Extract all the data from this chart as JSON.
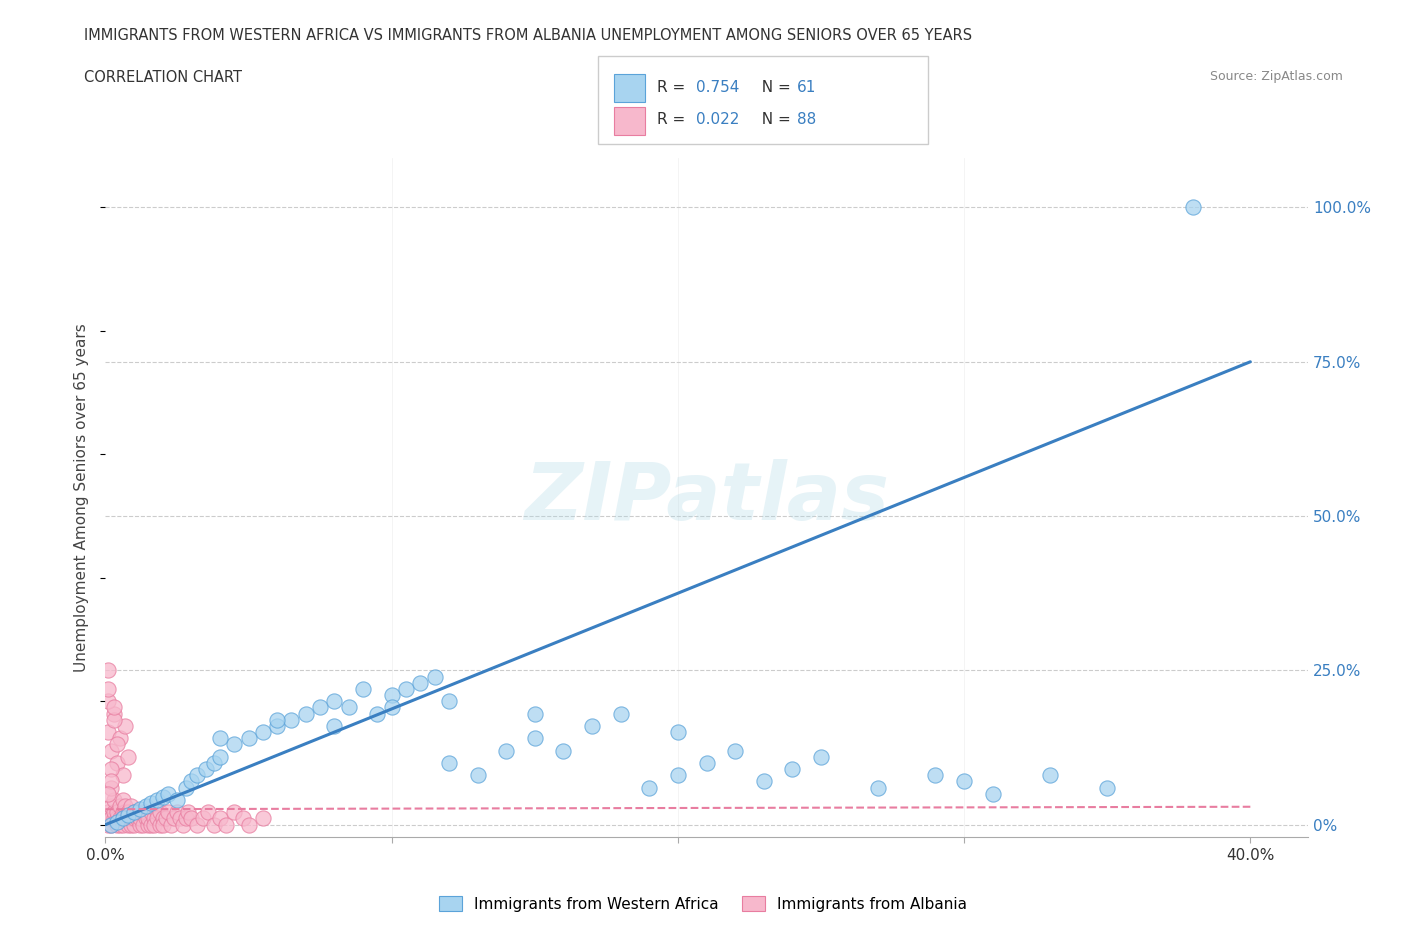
{
  "title_line1": "IMMIGRANTS FROM WESTERN AFRICA VS IMMIGRANTS FROM ALBANIA UNEMPLOYMENT AMONG SENIORS OVER 65 YEARS",
  "title_line2": "CORRELATION CHART",
  "source_text": "Source: ZipAtlas.com",
  "ylabel": "Unemployment Among Seniors over 65 years",
  "watermark_text": "ZIPatlas",
  "xlim": [
    0.0,
    0.42
  ],
  "ylim": [
    -0.02,
    1.08
  ],
  "yticks": [
    0.0,
    0.25,
    0.5,
    0.75,
    1.0
  ],
  "ytick_labels": [
    "0%",
    "25.0%",
    "50.0%",
    "75.0%",
    "100.0%"
  ],
  "color_blue_fill": "#A8D4F0",
  "color_blue_edge": "#5BA3D9",
  "color_pink_fill": "#F7B8CC",
  "color_pink_edge": "#E87DA0",
  "trend_blue_color": "#3A7FC1",
  "trend_pink_color": "#E87DA0",
  "background_color": "#ffffff",
  "grid_color": "#cccccc",
  "legend_r1_val": "0.754",
  "legend_n1_val": "61",
  "legend_r2_val": "0.022",
  "legend_n2_val": "88",
  "trend_blue_slope": 1.875,
  "trend_blue_intercept": 0.0,
  "trend_pink_slope": 0.01,
  "trend_pink_intercept": 0.025,
  "wa_x": [
    0.002,
    0.004,
    0.006,
    0.008,
    0.01,
    0.012,
    0.014,
    0.016,
    0.018,
    0.02,
    0.022,
    0.025,
    0.028,
    0.03,
    0.032,
    0.035,
    0.038,
    0.04,
    0.045,
    0.05,
    0.055,
    0.06,
    0.065,
    0.07,
    0.075,
    0.08,
    0.085,
    0.09,
    0.095,
    0.1,
    0.105,
    0.11,
    0.115,
    0.12,
    0.13,
    0.14,
    0.15,
    0.16,
    0.17,
    0.18,
    0.19,
    0.2,
    0.21,
    0.22,
    0.23,
    0.24,
    0.25,
    0.27,
    0.29,
    0.3,
    0.31,
    0.33,
    0.35,
    0.12,
    0.15,
    0.08,
    0.04,
    0.06,
    0.1,
    0.2,
    0.38
  ],
  "wa_y": [
    0.0,
    0.005,
    0.01,
    0.015,
    0.02,
    0.025,
    0.03,
    0.035,
    0.04,
    0.045,
    0.05,
    0.04,
    0.06,
    0.07,
    0.08,
    0.09,
    0.1,
    0.11,
    0.13,
    0.14,
    0.15,
    0.16,
    0.17,
    0.18,
    0.19,
    0.2,
    0.19,
    0.22,
    0.18,
    0.21,
    0.22,
    0.23,
    0.24,
    0.1,
    0.08,
    0.12,
    0.14,
    0.12,
    0.16,
    0.18,
    0.06,
    0.08,
    0.1,
    0.12,
    0.07,
    0.09,
    0.11,
    0.06,
    0.08,
    0.07,
    0.05,
    0.08,
    0.06,
    0.2,
    0.18,
    0.16,
    0.14,
    0.17,
    0.19,
    0.15,
    1.0
  ],
  "alb_x": [
    0.001,
    0.001,
    0.001,
    0.002,
    0.002,
    0.002,
    0.003,
    0.003,
    0.003,
    0.004,
    0.004,
    0.004,
    0.005,
    0.005,
    0.005,
    0.006,
    0.006,
    0.006,
    0.007,
    0.007,
    0.007,
    0.008,
    0.008,
    0.008,
    0.009,
    0.009,
    0.009,
    0.01,
    0.01,
    0.01,
    0.011,
    0.011,
    0.012,
    0.012,
    0.013,
    0.013,
    0.014,
    0.014,
    0.015,
    0.015,
    0.016,
    0.016,
    0.017,
    0.017,
    0.018,
    0.018,
    0.019,
    0.019,
    0.02,
    0.02,
    0.021,
    0.022,
    0.023,
    0.024,
    0.025,
    0.026,
    0.027,
    0.028,
    0.029,
    0.03,
    0.032,
    0.034,
    0.036,
    0.038,
    0.04,
    0.042,
    0.045,
    0.048,
    0.05,
    0.055,
    0.001,
    0.002,
    0.003,
    0.004,
    0.005,
    0.006,
    0.007,
    0.008,
    0.001,
    0.002,
    0.003,
    0.004,
    0.001,
    0.002,
    0.003,
    0.001,
    0.002,
    0.001
  ],
  "alb_y": [
    0.0,
    0.01,
    0.02,
    0.0,
    0.01,
    0.03,
    0.01,
    0.02,
    0.04,
    0.0,
    0.01,
    0.02,
    0.0,
    0.01,
    0.03,
    0.0,
    0.02,
    0.04,
    0.01,
    0.02,
    0.03,
    0.0,
    0.01,
    0.02,
    0.0,
    0.01,
    0.03,
    0.0,
    0.01,
    0.02,
    0.01,
    0.02,
    0.0,
    0.01,
    0.02,
    0.0,
    0.01,
    0.02,
    0.0,
    0.01,
    0.0,
    0.02,
    0.01,
    0.0,
    0.02,
    0.01,
    0.0,
    0.02,
    0.01,
    0.0,
    0.01,
    0.02,
    0.0,
    0.01,
    0.02,
    0.01,
    0.0,
    0.01,
    0.02,
    0.01,
    0.0,
    0.01,
    0.02,
    0.0,
    0.01,
    0.0,
    0.02,
    0.01,
    0.0,
    0.01,
    0.15,
    0.12,
    0.18,
    0.1,
    0.14,
    0.08,
    0.16,
    0.11,
    0.2,
    0.06,
    0.17,
    0.13,
    0.22,
    0.09,
    0.19,
    0.25,
    0.07,
    0.05
  ]
}
